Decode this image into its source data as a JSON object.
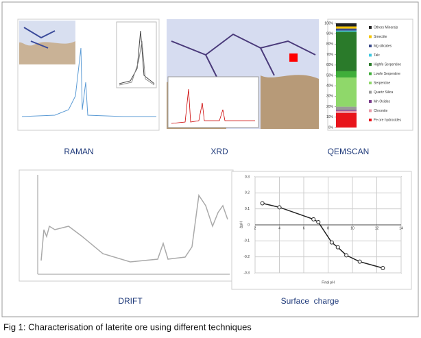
{
  "figure": {
    "labels": [
      "RAMAN",
      "XRD",
      "QEMSCAN",
      "DRIFT",
      "Surface  charge"
    ],
    "caption": "Fig 1: Characterisation of laterite ore using different techniques"
  },
  "chart_data": [
    {
      "type": "stacked-bar",
      "series": [
        {
          "name": "Fe ore hydroxides",
          "color": "#e8141b",
          "values": [
            14
          ]
        },
        {
          "name": "Chromite",
          "color": "#e89aa8",
          "values": [
            2
          ]
        },
        {
          "name": "Mn Oxides",
          "color": "#7a3a8a",
          "values": [
            1
          ]
        },
        {
          "name": "Quartz Silica",
          "color": "#9a9a9a",
          "values": [
            3
          ]
        },
        {
          "name": "Serpentine",
          "color": "#8fd86a",
          "values": [
            28
          ]
        },
        {
          "name": "Lowfe Serpentine",
          "color": "#3fae3a",
          "values": [
            6
          ]
        },
        {
          "name": "Highfe Serpentine",
          "color": "#2a7a2a",
          "values": [
            38
          ]
        },
        {
          "name": "Talc",
          "color": "#3ec8e0",
          "values": [
            1
          ]
        },
        {
          "name": "Mg silicates",
          "color": "#3a4a8a",
          "values": [
            2
          ]
        },
        {
          "name": "Smectite",
          "color": "#f5c400",
          "values": [
            2
          ]
        },
        {
          "name": "Others Minerals",
          "color": "#222222",
          "values": [
            3
          ]
        }
      ],
      "ylim": [
        0,
        100
      ],
      "yticks": [
        {
          "value": 0,
          "label": "0%"
        },
        {
          "value": 10,
          "label": "10%"
        },
        {
          "value": 20,
          "label": "20%"
        },
        {
          "value": 30,
          "label": "30%"
        },
        {
          "value": 40,
          "label": "40%"
        },
        {
          "value": 50,
          "label": "50%"
        },
        {
          "value": 60,
          "label": "60%"
        },
        {
          "value": 70,
          "label": "70%"
        },
        {
          "value": 80,
          "label": "80%"
        },
        {
          "value": 90,
          "label": "90%"
        },
        {
          "value": 100,
          "label": "100%"
        }
      ]
    },
    {
      "type": "line",
      "x_label": "Final  pH",
      "y_label": "ΔpH",
      "x": [
        2.6,
        4,
        6.8,
        7.2,
        8.3,
        8.8,
        9.5,
        10.6,
        12.5
      ],
      "series": [
        {
          "name": null,
          "color": "#222222",
          "values": [
            0.135,
            0.11,
            0.035,
            0.017,
            -0.11,
            -0.14,
            -0.19,
            -0.23,
            -0.27
          ]
        }
      ],
      "xlim": [
        2,
        14
      ],
      "xticks": [
        2,
        4,
        6,
        8,
        10,
        12,
        14
      ],
      "ylim": [
        -0.3,
        0.3
      ],
      "yticks": [
        -0.3,
        -0.2,
        -0.1,
        0,
        0.1,
        0.2,
        0.3
      ],
      "grid": true
    }
  ]
}
